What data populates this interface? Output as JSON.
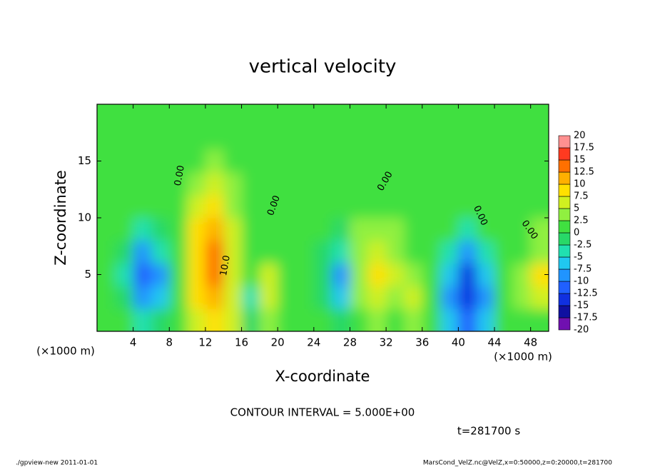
{
  "chart_data": {
    "type": "contour",
    "title": "vertical velocity",
    "xlabel": "X-coordinate",
    "ylabel": "Z-coordinate",
    "x_unit": "(×1000 m)",
    "annotations": [
      "CONTOUR INTERVAL = 5.000E+00",
      "t=281700 s"
    ],
    "footer_left": "./gpview-new  2011-01-01",
    "footer_right": "MarsCond_VelZ.nc@VelZ,x=0:50000,z=0:20000,t=281700",
    "contour_labels": [
      "0.00",
      "0.00",
      "0.00",
      "0.00",
      "0.00",
      "10.0"
    ],
    "xlim": [
      0,
      50
    ],
    "ylim": [
      0,
      20
    ],
    "xticks": [
      4,
      8,
      12,
      16,
      20,
      24,
      28,
      32,
      36,
      40,
      44,
      48
    ],
    "yticks": [
      5,
      10,
      15
    ],
    "x": [
      1,
      3,
      5,
      7,
      9,
      11,
      13,
      15,
      17,
      19,
      21,
      23,
      25,
      27,
      29,
      31,
      33,
      35,
      37,
      39,
      41,
      43,
      45,
      47,
      49
    ],
    "y": [
      1,
      3,
      5,
      7,
      9,
      11,
      13,
      15,
      17,
      19
    ],
    "z": [
      [
        1,
        1,
        -3,
        -2,
        1,
        6,
        9,
        5,
        -2,
        4,
        1,
        1,
        0,
        -2,
        2,
        4,
        2,
        3,
        1,
        -6,
        -11,
        -6,
        0,
        1,
        2
      ],
      [
        1,
        -2,
        -9,
        -6,
        1,
        8,
        12,
        6,
        -3,
        7,
        2,
        1,
        -1,
        -6,
        3,
        6,
        4,
        6,
        1,
        -8,
        -14,
        -8,
        0,
        3,
        7
      ],
      [
        1,
        -3,
        -11,
        -8,
        1,
        9,
        13,
        7,
        1,
        5,
        2,
        1,
        -2,
        -9,
        4,
        8,
        5,
        4,
        1,
        -7,
        -13,
        -7,
        1,
        4,
        8
      ],
      [
        2,
        -2,
        -8,
        -4,
        1,
        9,
        14,
        7,
        2,
        2,
        2,
        2,
        -1,
        -5,
        4,
        7,
        3,
        2,
        1,
        -4,
        -8,
        -3,
        1,
        2,
        4
      ],
      [
        2,
        1,
        -3,
        -1,
        2,
        8,
        12,
        6,
        2,
        2,
        2,
        2,
        1,
        -1,
        3,
        4,
        3,
        2,
        2,
        1,
        -3,
        1,
        2,
        2,
        3
      ],
      [
        2,
        2,
        1,
        1,
        2,
        6,
        9,
        4,
        2,
        2,
        2,
        2,
        2,
        2,
        2,
        2,
        2,
        2,
        2,
        2,
        2,
        2,
        2,
        2,
        2
      ],
      [
        2,
        2,
        2,
        2,
        2,
        4,
        5,
        3,
        2,
        2,
        2,
        2,
        2,
        2,
        2,
        2,
        2,
        2,
        2,
        2,
        2,
        2,
        2,
        2,
        2
      ],
      [
        2,
        2,
        2,
        2,
        2,
        2,
        3,
        2,
        2,
        2,
        2,
        2,
        2,
        2,
        2,
        2,
        2,
        2,
        2,
        2,
        2,
        2,
        2,
        2,
        2
      ],
      [
        2,
        2,
        2,
        2,
        2,
        2,
        2,
        2,
        2,
        2,
        2,
        2,
        2,
        2,
        2,
        2,
        2,
        2,
        2,
        2,
        2,
        2,
        2,
        2,
        2
      ],
      [
        2,
        2,
        2,
        2,
        2,
        2,
        2,
        2,
        2,
        2,
        2,
        2,
        2,
        2,
        2,
        2,
        2,
        2,
        2,
        2,
        2,
        2,
        2,
        2,
        2
      ]
    ],
    "levels": [
      -20,
      -17.5,
      -15,
      -12.5,
      -10,
      -7.5,
      -5,
      -2.5,
      0,
      2.5,
      5,
      7.5,
      10,
      12.5,
      15,
      17.5,
      20
    ],
    "level_colors": [
      "#7010b0",
      "#1010a0",
      "#1030e0",
      "#2060ff",
      "#2094ff",
      "#20c8f0",
      "#20e0b0",
      "#28d868",
      "#40e040",
      "#90f040",
      "#d0f020",
      "#ffe000",
      "#ffb000",
      "#ff7000",
      "#ff3a20",
      "#ff9090"
    ]
  }
}
